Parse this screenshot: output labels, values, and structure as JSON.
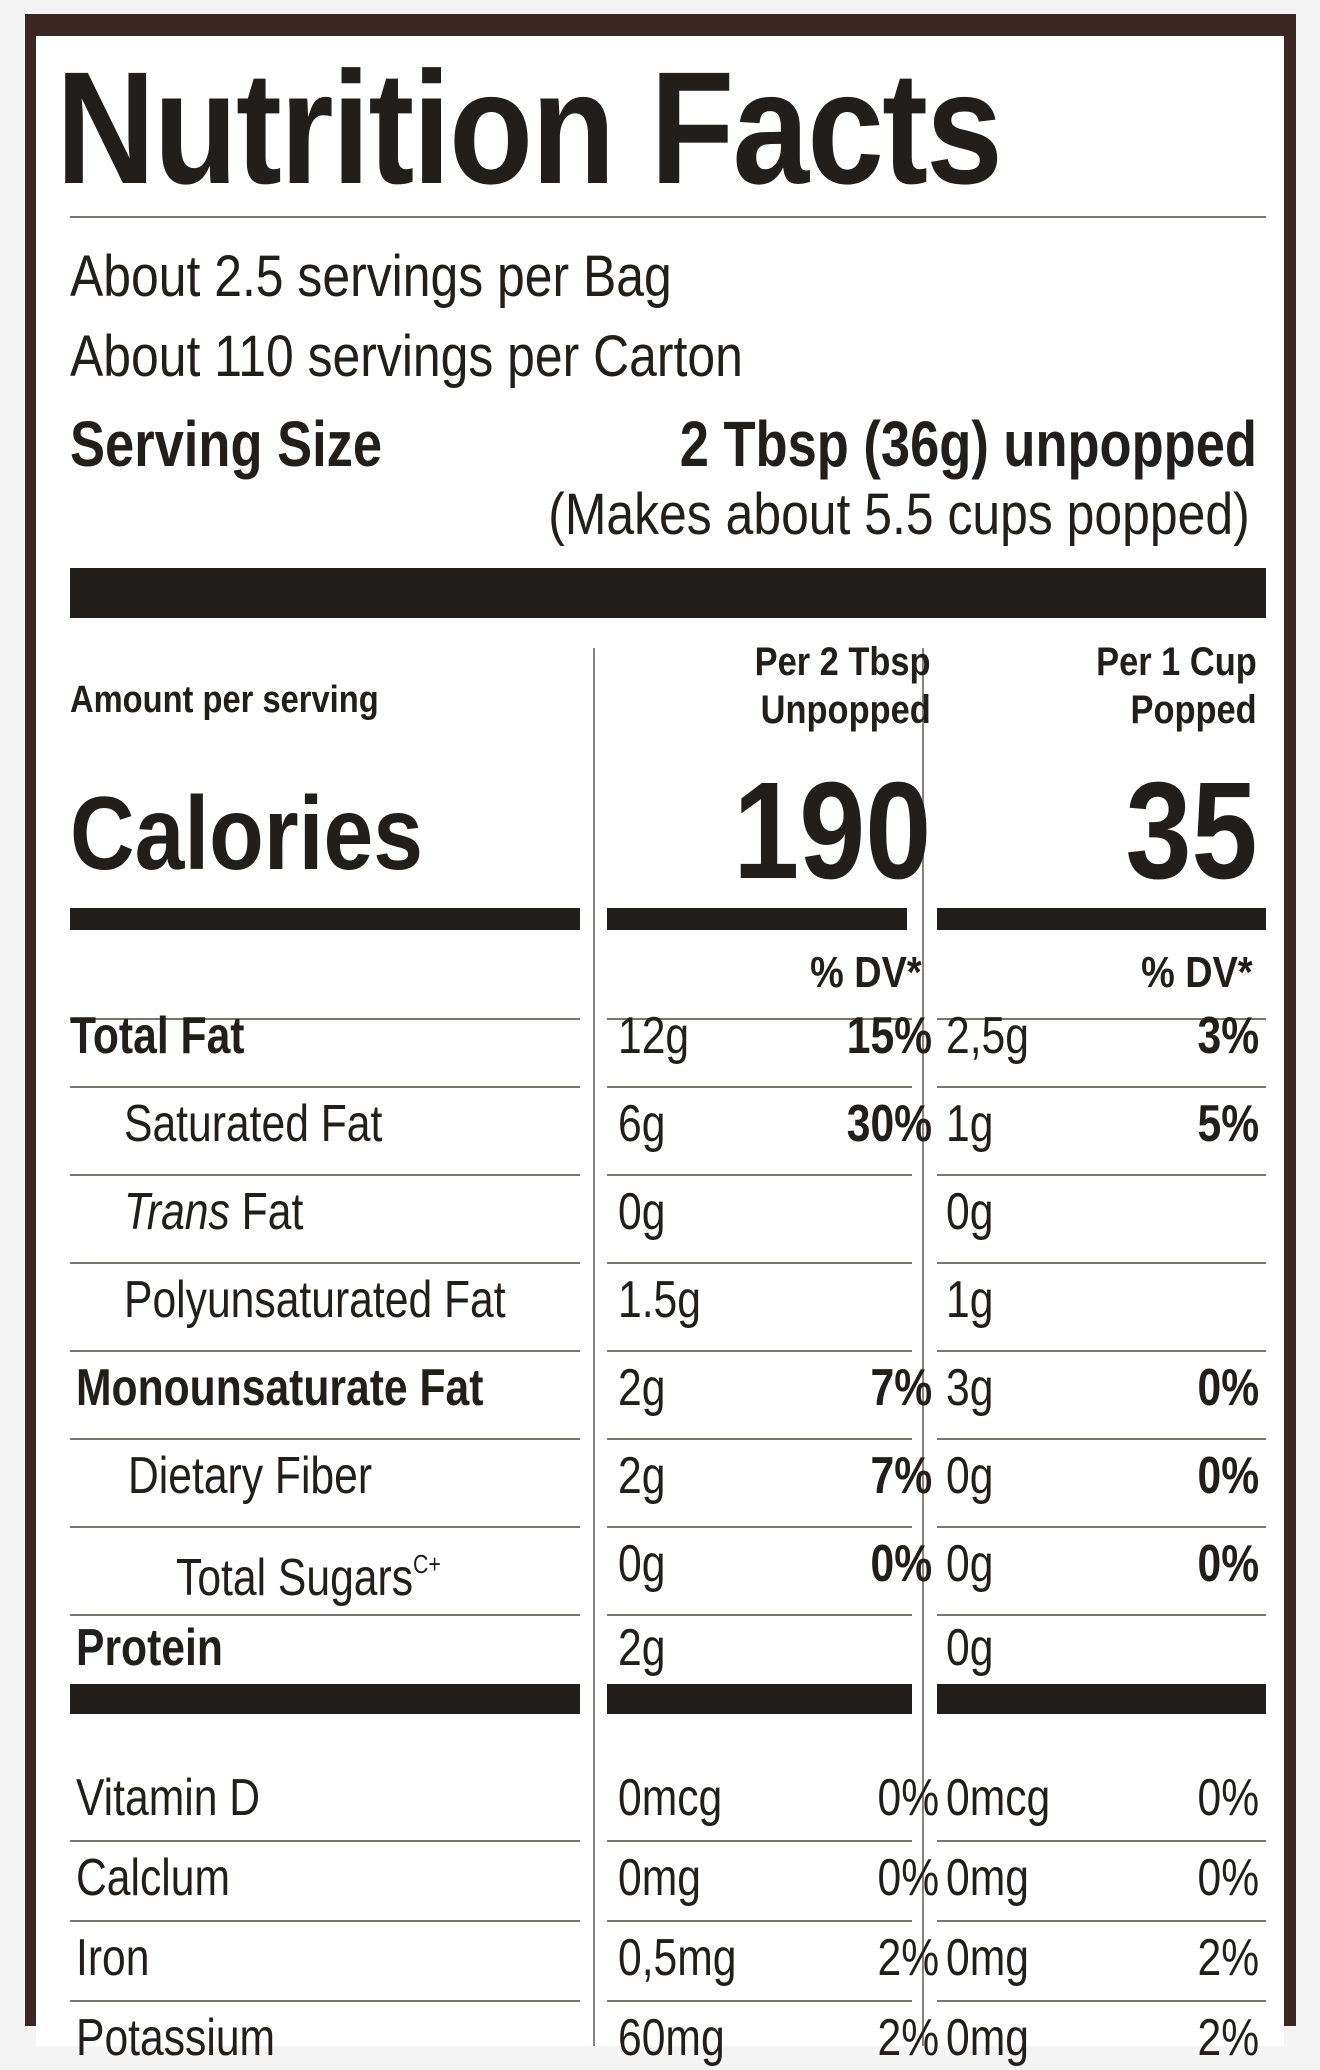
{
  "title": "Nutrition Facts",
  "servings": {
    "bag": "About 2.5 servings per Bag",
    "carton": "About 110 servings per Carton"
  },
  "serving_size": {
    "label": "Serving Size",
    "value": "2 Tbsp (36g) unpopped",
    "note": "(Makes about 5.5 cups popped)"
  },
  "amount_per_serving": "Amount per serving",
  "columns": {
    "col1_line1": "Per 2 Tbsp",
    "col1_line2": "Unpopped",
    "col2_line1": "Per 1  Cup",
    "col2_line2": "Popped"
  },
  "calories": {
    "label": "Calories",
    "col1": "190",
    "col2": "35"
  },
  "dv_header": "% DV*",
  "nutrients": [
    {
      "name": "Total Fat",
      "a1": "12g",
      "p1": "15%",
      "a2": "2,5g",
      "p2": "3%"
    },
    {
      "name": "Saturated Fat",
      "a1": "6g",
      "p1": "30%",
      "a2": "1g",
      "p2": "5%"
    },
    {
      "name_italic": "Trans",
      "name_rest": " Fat",
      "a1": "0g",
      "p1": "",
      "a2": "0g",
      "p2": ""
    },
    {
      "name": "Polyunsaturated Fat",
      "a1": "1.5g",
      "p1": "",
      "a2": "1g",
      "p2": ""
    },
    {
      "name": "Monounsaturate Fat",
      "a1": "2g",
      "p1": "7%",
      "a2": "3g",
      "p2": "0%"
    },
    {
      "name": "Dietary Fiber",
      "a1": "2g",
      "p1": "7%",
      "a2": "0g",
      "p2": "0%"
    },
    {
      "name": "Total Sugars",
      "name_sup": "C+",
      "a1": "0g",
      "p1": "0%",
      "a2": "0g",
      "p2": "0%"
    },
    {
      "name": "Protein",
      "a1": "2g",
      "p1": "",
      "a2": "0g",
      "p2": ""
    }
  ],
  "vitamins": [
    {
      "name": "Vitamin D",
      "a1": "0mcg",
      "p1": "0%",
      "a2": "0mcg",
      "p2": "0%"
    },
    {
      "name": "Calclum",
      "a1": "0mg",
      "p1": "0%",
      "a2": "0mg",
      "p2": "0%"
    },
    {
      "name": "Iron",
      "a1": "0,5mg",
      "p1": "2%",
      "a2": "0mg",
      "p2": "2%"
    },
    {
      "name": "Potassium",
      "a1": "60mg",
      "p1": "2%",
      "a2": "0mg",
      "p2": "2%"
    }
  ]
}
